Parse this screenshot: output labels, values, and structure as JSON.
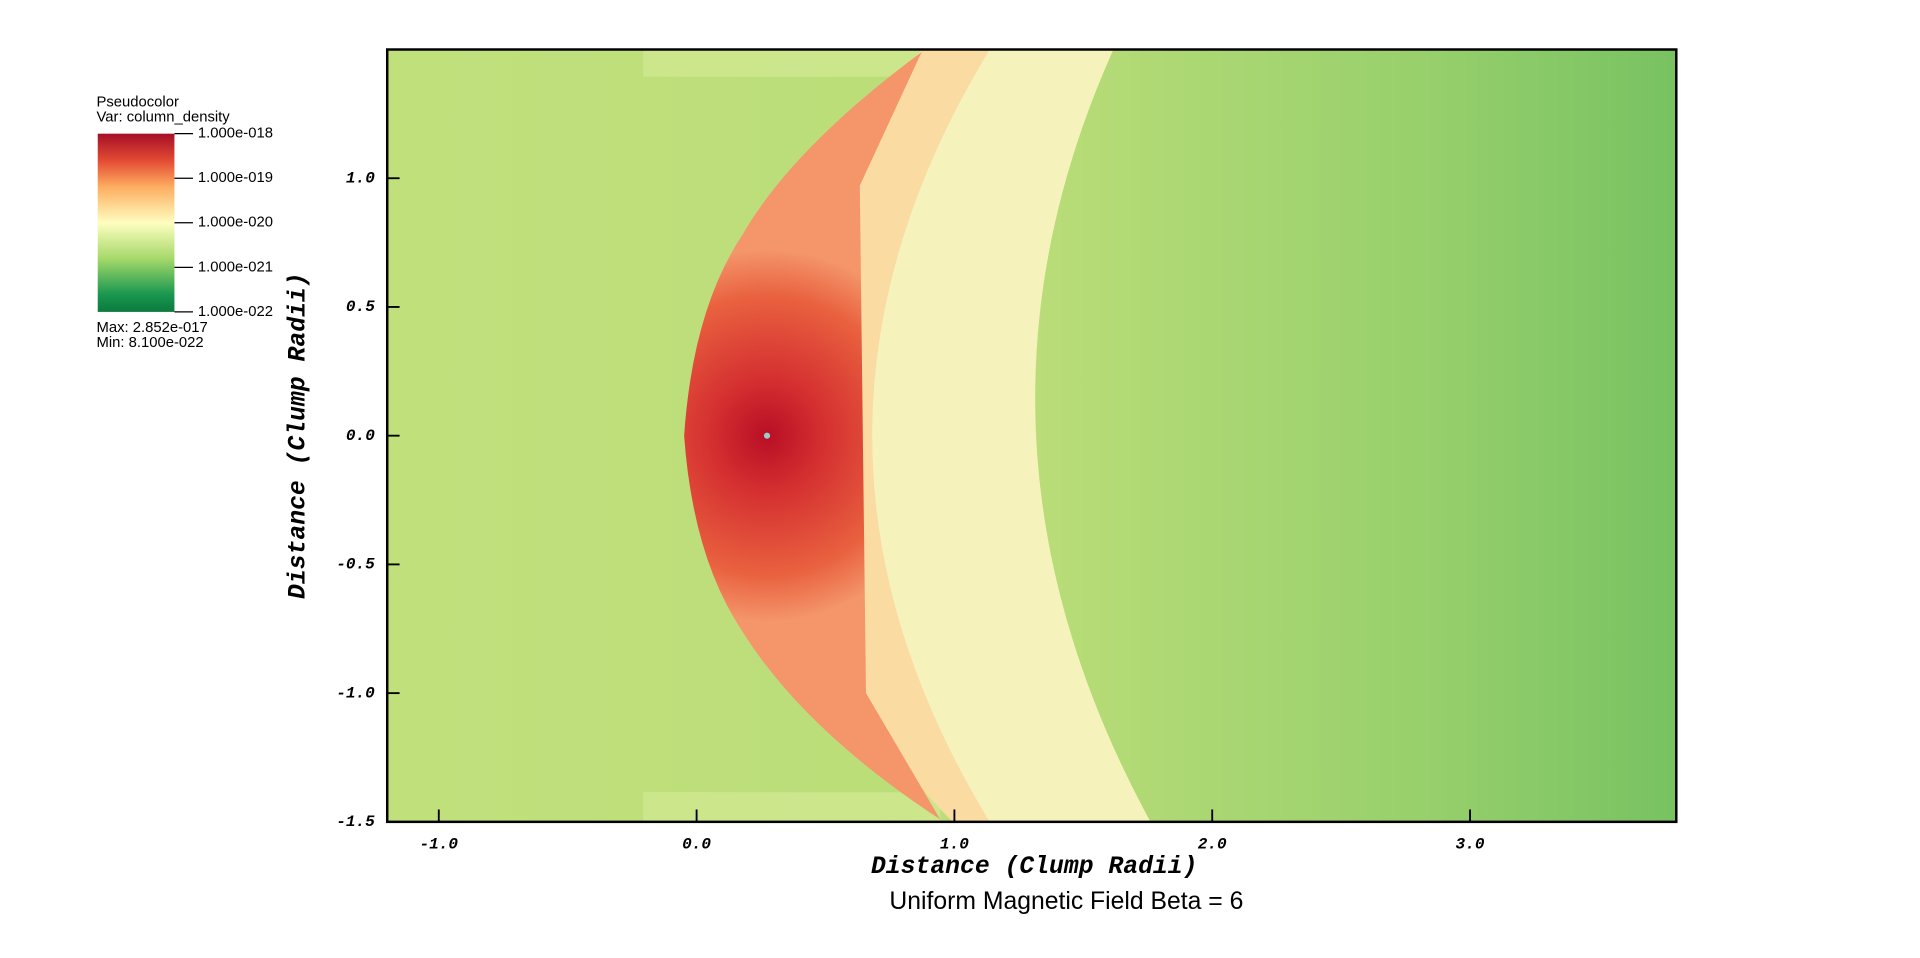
{
  "chart_data": {
    "type": "pseudocolor",
    "title": "Uniform Magnetic Field Beta = 6",
    "x_label": "Distance (Clump Radii)",
    "y_label": "Distance (Clump Radii)",
    "xlim": [
      -1.2,
      3.8
    ],
    "ylim": [
      -1.5,
      1.5
    ],
    "xticks": [
      {
        "value": -1,
        "label": "-1.0"
      },
      {
        "value": 0,
        "label": "0.0"
      },
      {
        "value": 1,
        "label": "1.0"
      },
      {
        "value": 2,
        "label": "2.0"
      },
      {
        "value": 3,
        "label": "3.0"
      }
    ],
    "yticks": [
      {
        "value": -1.5,
        "label": "-1.5"
      },
      {
        "value": -1,
        "label": "-1.0"
      },
      {
        "value": -0.5,
        "label": "-0.5"
      },
      {
        "value": 0,
        "label": "0.0"
      },
      {
        "value": 0.5,
        "label": "0.5"
      },
      {
        "value": 1,
        "label": "1.0"
      }
    ],
    "legend": {
      "plot_name": "Pseudocolor",
      "variable": "Var: column_density",
      "log": true,
      "clim": [
        1e-22,
        1e-18
      ],
      "ticks": [
        {
          "value": 1e-18,
          "label": "1.000e-018"
        },
        {
          "value": 1e-19,
          "label": "1.000e-019"
        },
        {
          "value": 1e-20,
          "label": "1.000e-020"
        },
        {
          "value": 1e-21,
          "label": "1.000e-021"
        },
        {
          "value": 1e-22,
          "label": "1.000e-022"
        }
      ],
      "max": "Max:  2.852e-017",
      "min": "Min:  8.100e-022",
      "colors": [
        "#a50f26",
        "#e34a33",
        "#fdae61",
        "#fefec0",
        "#a6d96a",
        "#1a9850",
        "#0b7a3e"
      ]
    }
  }
}
